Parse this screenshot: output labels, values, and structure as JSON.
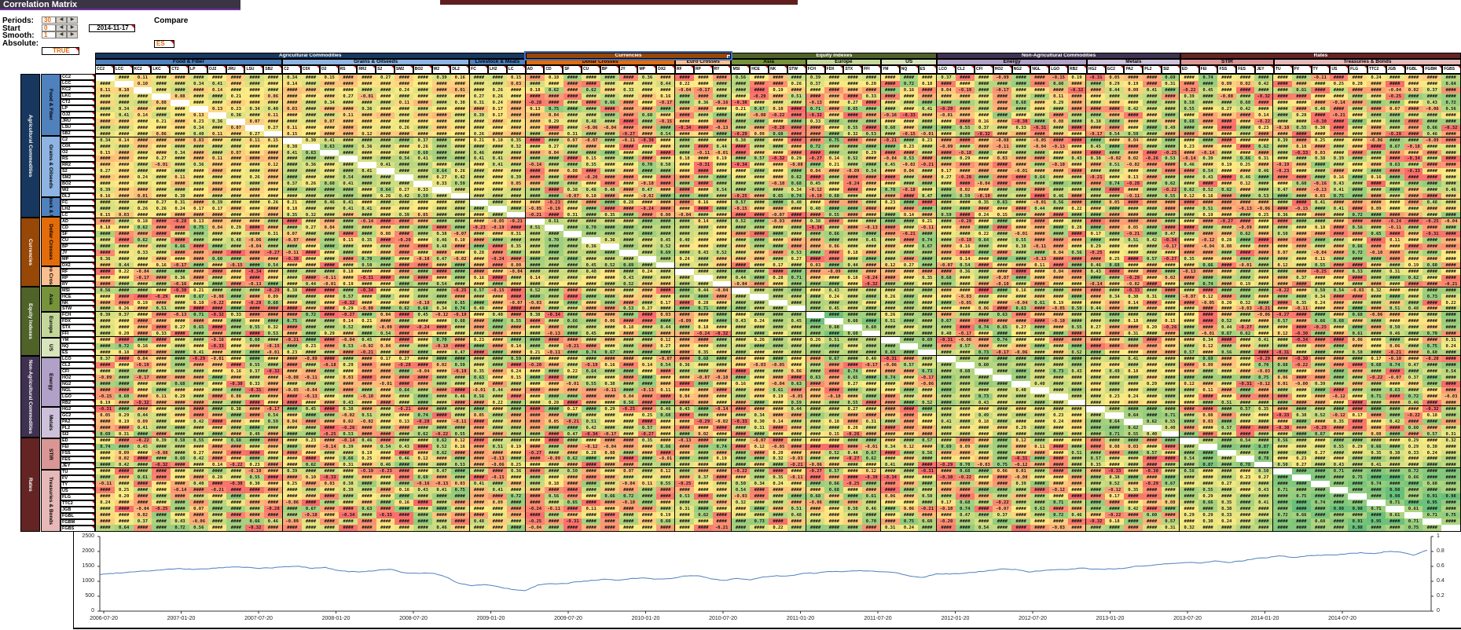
{
  "title": "Correlation Matrix",
  "controls": {
    "periods": {
      "label": "Periods:",
      "value": "30"
    },
    "start": {
      "label": "Start",
      "value": "0",
      "date": "2014-11-17"
    },
    "smooth": {
      "label": "Smooth:",
      "value": "1"
    },
    "absolute": {
      "label": "Absolute:",
      "value": "TRUE"
    },
    "compare": {
      "label": "Compare",
      "value": "ES"
    }
  },
  "matrix": {
    "selection": "Currencies",
    "groups": [
      {
        "name": "Agricultural Commodities",
        "color": "#17375E",
        "subs": [
          {
            "name": "Food & Fiber",
            "color": "#4F81BD",
            "cohesion": 0.18,
            "tickers": [
              "CC2",
              "LCC",
              "KC2",
              "LKC",
              "CT2",
              "LP",
              "OJ2",
              "JRU",
              "LSU",
              "SB2"
            ]
          },
          {
            "name": "Grains & Oilseeds",
            "color": "#8DB4E2",
            "cohesion": 0.38,
            "tickers": [
              "C2",
              "C0X",
              "O2",
              "RS",
              "RR2",
              "S2",
              "SM2",
              "BO2",
              "W2",
              "DL2"
            ]
          },
          {
            "name": "Livestock & Meats",
            "color": "#4F81BD",
            "cohesion": 0.3,
            "tickers": [
              "FC",
              "LH2",
              "LC"
            ]
          }
        ]
      },
      {
        "name": "Currencies",
        "color": "#974706",
        "subs": [
          {
            "name": "Dollar Crosses",
            "color": "#E26B0A",
            "cohesion": 0.45,
            "tickers": [
              "AD",
              "CD",
              "SF",
              "CU",
              "BP",
              "JY",
              "MP",
              "DX2"
            ]
          },
          {
            "name": "Euro Crosses",
            "color": "#FABF8F",
            "cohesion": 0.45,
            "tickers": [
              "RF",
              "RP",
              "RY"
            ]
          }
        ]
      },
      {
        "name": "Equity Indexes",
        "color": "#4F6228",
        "subs": [
          {
            "name": "Asia",
            "color": "#76933C",
            "cohesion": 0.52,
            "tickers": [
              "MSI",
              "HCE",
              "NK",
              "STW"
            ]
          },
          {
            "name": "Europe",
            "color": "#C4D79B",
            "cohesion": 0.7,
            "tickers": [
              "FCH",
              "FDX",
              "STX",
              "FFI"
            ]
          },
          {
            "name": "US",
            "color": "#D8E4BC",
            "cohesion": 0.75,
            "tickers": [
              "YM",
              "NQ",
              "ES"
            ]
          }
        ]
      },
      {
        "name": "Non-Agricultural Commodities",
        "color": "#3F3151",
        "subs": [
          {
            "name": "Energy",
            "color": "#B1A0C7",
            "cohesion": 0.45,
            "tickers": [
              "LCO",
              "CL2",
              "CFI",
              "HO2",
              "NG2",
              "NGL",
              "LGO",
              "RB2"
            ]
          },
          {
            "name": "Metals",
            "color": "#CCC0DA",
            "cohesion": 0.5,
            "tickers": [
              "HG2",
              "GC2",
              "PA2",
              "PL2",
              "SI2"
            ]
          }
        ]
      },
      {
        "name": "Rates",
        "color": "#632423",
        "subs": [
          {
            "name": "STIR",
            "color": "#D99694",
            "cohesion": 0.6,
            "tickers": [
              "ED",
              "FEI",
              "FSS",
              "FES",
              "JEY"
            ]
          },
          {
            "name": "Treasuries & Bonds",
            "color": "#E6B8B7",
            "cohesion": 0.72,
            "tickers": [
              "TU",
              "FV",
              "TY",
              "US",
              "FLG",
              "TTC2",
              "JGB",
              "FGBL",
              "FGBM",
              "FGBS"
            ]
          }
        ]
      }
    ],
    "cell_display": {
      "overflow_text": "####",
      "hash_ratio": 0.7,
      "seed": 1337,
      "note": "most cells render as #### (column too narrow); visible samples include 0.18, 0.13, 0.17, 0.41, 0.31, 0.01, 0.11, 0.14, 0.16, 0.21",
      "colors": {
        "low": "#F8696B",
        "mid": "#FFEB84",
        "high": "#63BE7B",
        "diagonal": "#FFFFFF"
      },
      "scale": {
        "min": -0.35,
        "mid": 0.2,
        "max": 1.0
      }
    }
  },
  "chart_data": {
    "type": "line",
    "series_name": "ES",
    "line_color": "#4F81BD",
    "x_tick_labels": [
      "2006-07-20",
      "2007-01-20",
      "2007-07-20",
      "2008-01-20",
      "2008-07-20",
      "2009-01-20",
      "2009-07-20",
      "2010-01-20",
      "2010-07-20",
      "2011-01-20",
      "2011-07-20",
      "2012-01-20",
      "2012-07-20",
      "2013-01-20",
      "2013-07-20",
      "2014-01-20",
      "2014-07-20"
    ],
    "y_left_ticks": [
      "2500",
      "2000",
      "1500",
      "1000",
      "500",
      "0"
    ],
    "y_right_ticks": [
      "1",
      "0.8",
      "0.6",
      "0.4",
      "0.2",
      "0"
    ],
    "y_left_max": 2500,
    "monthly_values": [
      1225,
      1270,
      1300,
      1340,
      1355,
      1400,
      1420,
      1400,
      1420,
      1450,
      1480,
      1470,
      1440,
      1450,
      1490,
      1500,
      1440,
      1460,
      1360,
      1320,
      1320,
      1380,
      1400,
      1280,
      1260,
      1280,
      1160,
      940,
      860,
      890,
      820,
      730,
      680,
      870,
      920,
      920,
      990,
      1020,
      1060,
      1040,
      1090,
      1115,
      1070,
      1100,
      1170,
      1190,
      1090,
      1030,
      1100,
      1050,
      1140,
      1180,
      1180,
      1260,
      1280,
      1330,
      1330,
      1360,
      1345,
      1320,
      1290,
      1180,
      1130,
      1250,
      1250,
      1260,
      1310,
      1360,
      1410,
      1400,
      1310,
      1360,
      1380,
      1400,
      1440,
      1410,
      1415,
      1425,
      1500,
      1520,
      1570,
      1600,
      1630,
      1610,
      1690,
      1630,
      1680,
      1760,
      1800,
      1850,
      1790,
      1860,
      1870,
      1880,
      1920,
      1960,
      1930,
      2000,
      1970,
      1880,
      2040
    ]
  }
}
